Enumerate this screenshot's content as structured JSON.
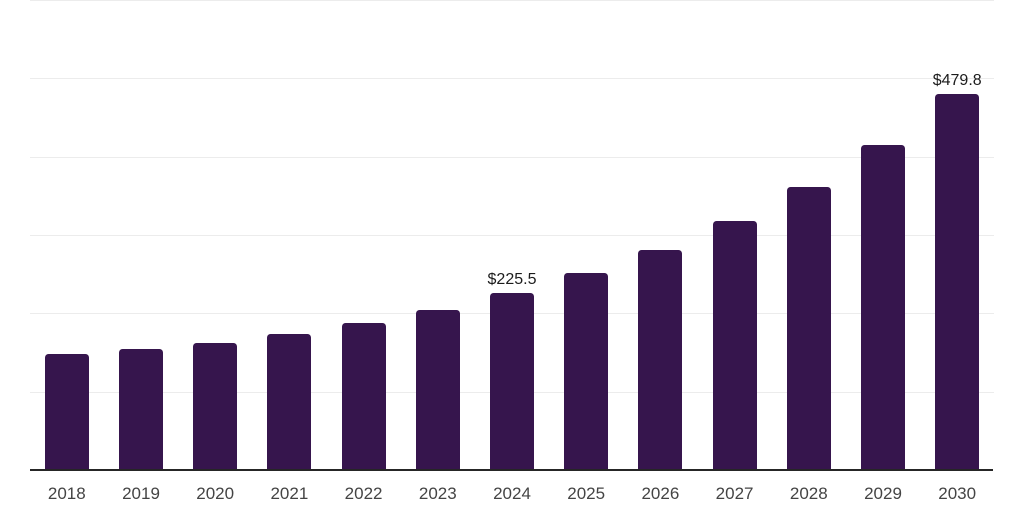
{
  "chart_data": {
    "type": "bar",
    "title": "",
    "xlabel": "",
    "ylabel": "",
    "categories": [
      "2018",
      "2019",
      "2020",
      "2021",
      "2022",
      "2023",
      "2024",
      "2025",
      "2026",
      "2027",
      "2028",
      "2029",
      "2030"
    ],
    "values": [
      148.1,
      154.5,
      162.6,
      173.7,
      187.3,
      204.3,
      225.5,
      251.2,
      280.9,
      317.6,
      361.8,
      415.4,
      479.8
    ],
    "value_labels": {
      "2024": "$225.5",
      "2030": "$479.8"
    },
    "ylim": [
      0,
      600
    ],
    "gridline_values": [
      100,
      200,
      300,
      400,
      500,
      600
    ],
    "grid": true,
    "legend": "none",
    "colors": {
      "bar": "#36154d",
      "axis_line": "#262626",
      "gridline": "#ececec",
      "tick_label": "#444444",
      "value_label": "#1c1c1c",
      "background": "#ffffff"
    }
  }
}
